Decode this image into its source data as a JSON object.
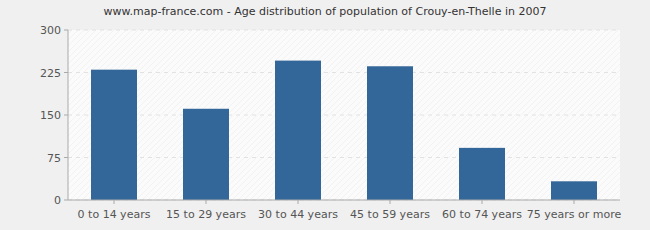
{
  "chart_data": {
    "type": "bar",
    "title": "www.map-france.com - Age distribution of population of Crouy-en-Thelle in 2007",
    "categories": [
      "0 to 14 years",
      "15 to 29 years",
      "30 to 44 years",
      "45 to 59 years",
      "60 to 74 years",
      "75 years or more"
    ],
    "values": [
      230,
      161,
      246,
      236,
      92,
      33
    ],
    "color": "#336699",
    "ylim": [
      0,
      300
    ],
    "yticks": [
      0,
      75,
      150,
      225,
      300
    ],
    "grid": true
  }
}
